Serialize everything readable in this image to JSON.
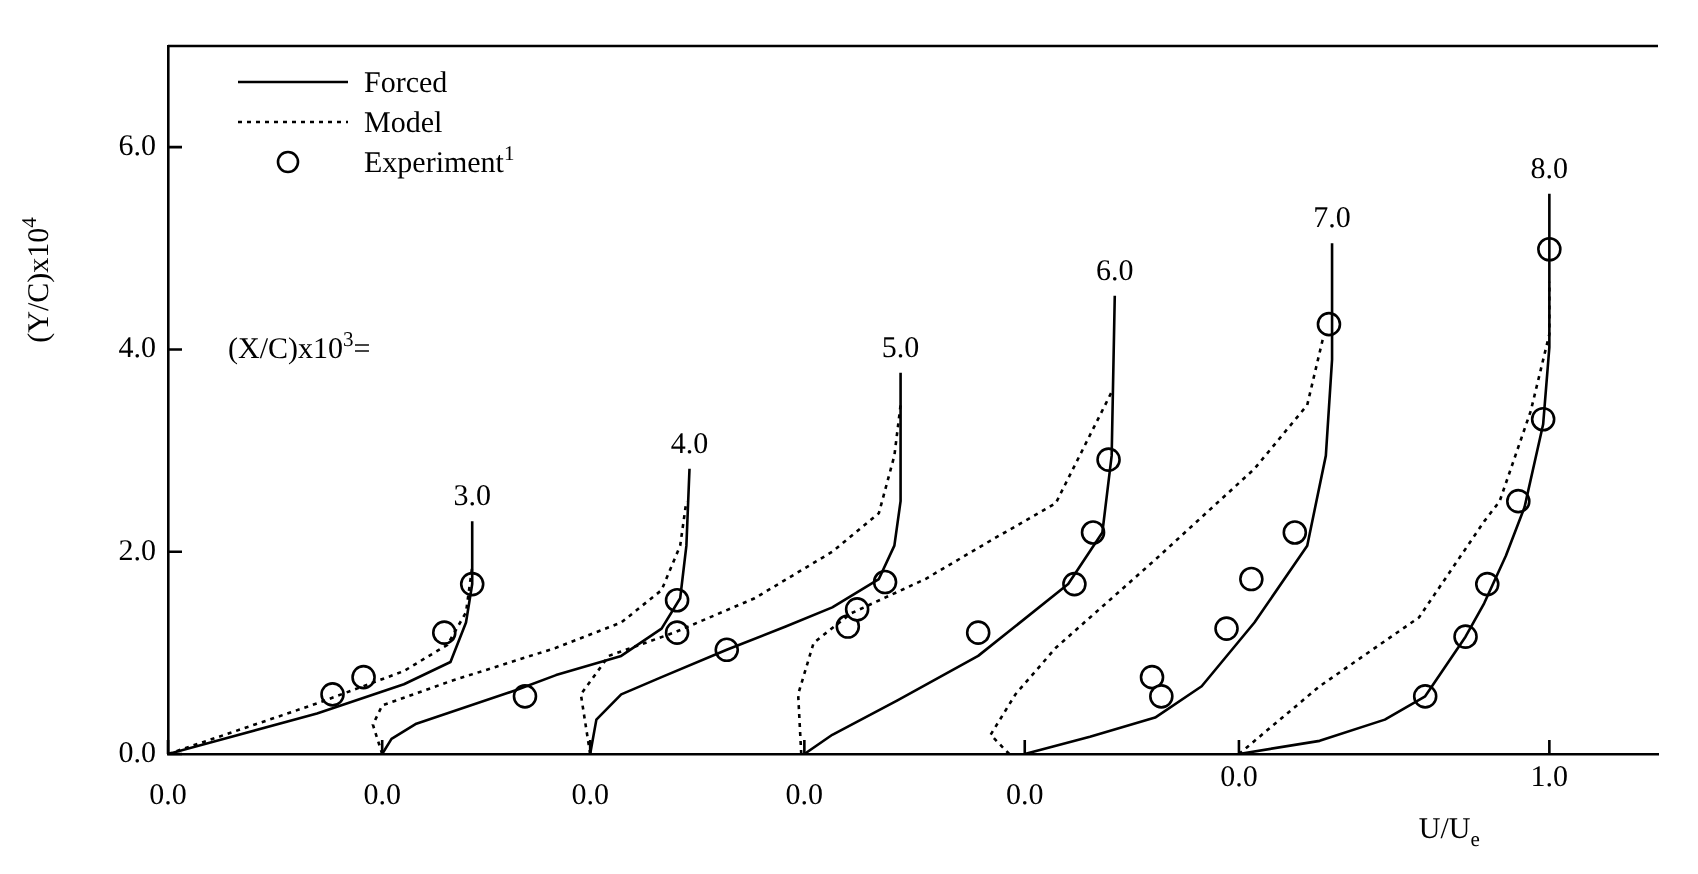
{
  "chart_data": {
    "type": "line",
    "xlabel": "U/U$_{e}$",
    "ylabel": "(Y/C)x10$^{4}$",
    "xlim": [
      -3.45,
      1.35
    ],
    "ylim": [
      0,
      7
    ],
    "xticks": [
      {
        "value": -3.45,
        "label": null
      },
      {
        "value": -2.76,
        "label": null
      },
      {
        "value": -2.09,
        "label": null
      },
      {
        "value": -1.4,
        "label": null
      },
      {
        "value": -0.69,
        "label": null
      },
      {
        "value": 0,
        "label": "0.0"
      },
      {
        "value": 1,
        "label": "1.0"
      }
    ],
    "yticks": [
      {
        "value": 0,
        "label": "0.0"
      },
      {
        "value": 2,
        "label": "2.0"
      },
      {
        "value": 4,
        "label": "4.0"
      },
      {
        "value": 6,
        "label": "6.0"
      }
    ],
    "grid": false,
    "legend": "top left",
    "annotations": [
      "0.0",
      "0.0",
      "0.0",
      "0.0",
      "0.0",
      "(X/C)x10$^{3}$=",
      {
        "text": "3.0",
        "x": -2.47,
        "y": 2.3
      },
      {
        "text": "4.0",
        "x": -1.77,
        "y": 2.82
      },
      {
        "text": "5.0",
        "x": -1.09,
        "y": 3.77
      },
      {
        "text": "6.0",
        "x": -0.4,
        "y": 4.53
      },
      {
        "text": "7.0",
        "x": 0.3,
        "y": 5.05
      },
      {
        "text": "8.0",
        "x": 1.0,
        "y": 5.54
      }
    ],
    "series": [
      {
        "name": "Forced",
        "color": "#000000",
        "line_style": "solid",
        "marker": "none",
        "x": [
          -3.45,
          -2.97,
          -2.69,
          -2.54,
          -2.49,
          -2.47,
          -2.47,
          null,
          -2.76,
          -2.73,
          -2.65,
          -2.33,
          -2.2,
          -1.99,
          -1.86,
          -1.8,
          -1.78,
          -1.77,
          null,
          -2.09,
          -2.07,
          -1.99,
          -1.86,
          -1.65,
          -1.46,
          -1.31,
          -1.16,
          -1.11,
          -1.09,
          -1.09,
          null,
          -1.4,
          -1.31,
          -1.1,
          -0.84,
          -0.55,
          -0.44,
          -0.41,
          -0.4,
          null,
          -0.69,
          -0.48,
          -0.27,
          -0.12,
          0.05,
          0.22,
          0.28,
          0.3,
          0.3,
          null,
          0,
          0.26,
          0.47,
          0.6,
          0.73,
          0.79,
          0.86,
          0.92,
          0.98,
          1.0,
          1.0
        ],
        "values": [
          0,
          0.4,
          0.69,
          0.91,
          1.3,
          1.68,
          2.3,
          null,
          0,
          0.15,
          0.3,
          0.63,
          0.78,
          0.97,
          1.24,
          1.54,
          2.06,
          2.82,
          null,
          0,
          0.34,
          0.59,
          0.76,
          1.03,
          1.26,
          1.45,
          1.73,
          2.06,
          2.5,
          3.77,
          null,
          0,
          0.19,
          0.53,
          0.97,
          1.68,
          2.19,
          2.95,
          4.53,
          null,
          0,
          0.17,
          0.36,
          0.67,
          1.3,
          2.06,
          2.95,
          3.9,
          5.05,
          null,
          0,
          0.13,
          0.34,
          0.57,
          1.16,
          1.49,
          1.96,
          2.44,
          3.26,
          4.02,
          5.54
        ]
      },
      {
        "name": "Model",
        "color": "#000000",
        "line_style": "dotted",
        "marker": "none",
        "x": [
          -3.45,
          -2.97,
          -2.69,
          -2.55,
          -2.49,
          -2.47,
          null,
          -2.76,
          -2.79,
          -2.76,
          -2.54,
          -2.2,
          -1.99,
          -1.86,
          -1.8,
          -1.78,
          null,
          -2.09,
          -2.12,
          -2.03,
          -1.82,
          -1.56,
          -1.31,
          -1.16,
          -1.11,
          -1.09,
          null,
          -1.41,
          -1.42,
          -1.37,
          -1.25,
          -1.01,
          -0.8,
          -0.59,
          -0.41,
          null,
          -0.74,
          -0.8,
          -0.72,
          -0.59,
          -0.27,
          0.05,
          0.22,
          0.27,
          null,
          0,
          0.26,
          0.58,
          0.79,
          0.84,
          0.94,
          1.0,
          1.0
        ],
        "values": [
          0,
          0.5,
          0.82,
          1.08,
          1.4,
          1.85,
          null,
          0,
          0.29,
          0.48,
          0.72,
          1.05,
          1.3,
          1.62,
          2.06,
          2.5,
          null,
          0,
          0.59,
          0.97,
          1.2,
          1.54,
          2.0,
          2.38,
          2.95,
          3.45,
          null,
          0,
          0.59,
          1.1,
          1.39,
          1.73,
          2.11,
          2.48,
          3.58,
          null,
          0,
          0.19,
          0.59,
          1.05,
          1.92,
          2.82,
          3.45,
          4.1,
          null,
          0,
          0.67,
          1.35,
          2.3,
          2.5,
          3.39,
          4.15,
          4.67
        ]
      },
      {
        "name": "Experiment$^{1}$",
        "type": "scatter",
        "color": "#000000",
        "marker": "circle",
        "x": [
          -2.92,
          -2.82,
          -2.56,
          -2.47,
          -2.3,
          -1.81,
          -1.81,
          -1.65,
          -1.26,
          -1.23,
          -1.14,
          -0.84,
          -0.53,
          -0.47,
          -0.42,
          -0.28,
          -0.25,
          -0.04,
          0.04,
          0.18,
          0.29,
          0.6,
          0.73,
          0.8,
          0.9,
          0.98,
          1.0
        ],
        "values": [
          0.59,
          0.76,
          1.2,
          1.68,
          0.57,
          1.52,
          1.2,
          1.03,
          1.26,
          1.43,
          1.7,
          1.2,
          1.68,
          2.19,
          2.91,
          0.76,
          0.57,
          1.24,
          1.73,
          2.19,
          4.25,
          0.57,
          1.16,
          1.68,
          2.5,
          3.31,
          4.99
        ]
      }
    ]
  }
}
